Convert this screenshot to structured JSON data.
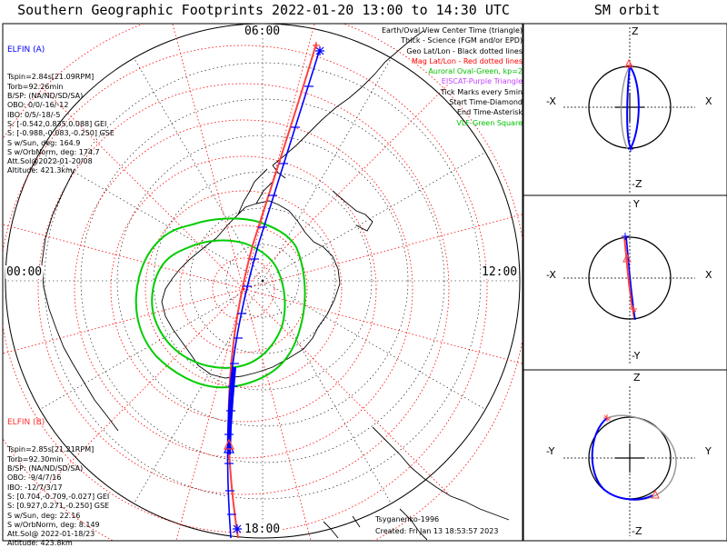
{
  "title": "Southern Geographic Footprints 2022-01-20 13:00 to 14:30 UTC",
  "sm_title": "SM orbit",
  "time_labels": {
    "top": "06:00",
    "left": "00:00",
    "right": "12:00",
    "bottom": "18:00"
  },
  "elfin_a": {
    "name": "ELFIN (A)",
    "color": "#0000ff",
    "lines": [
      "Tspin=2.84s[21.09RPM]",
      "Torb=92.26min",
      "B/SP: (NA/ND/SD/SA)",
      "OBO: 0/0/-16/-12",
      "IBO: 0/5/-18/-5",
      "S: [-0.542,0.835,0.088] GEI",
      "S: [-0.988,-0.083,-0.250] GSE",
      "S w/Sun, deg: 164.9",
      "S w/OrbNorm, deg: 174.7",
      "Att.Sol@2022-01-20/08",
      "Altitude: 421.3km"
    ]
  },
  "elfin_b": {
    "name": "ELFIN (B)",
    "color": "#ff3030",
    "lines": [
      "Tspin=2.85s[21.21RPM]",
      "Torb=92.30min",
      "B/SP: (NA/ND/SD/SA)",
      "OBO: -9/4/7/16",
      "IBO: -12/7/3/17",
      "S: [0.704,-0.709,-0.027] GEI",
      "S: [0.927,0.271,-0.250] GSE",
      "S w/Sun, deg: 22.16",
      "S w/OrbNorm, deg: 8.149",
      "Att.Sol@ 2022-01-18/23",
      "Altitude: 423.8km"
    ]
  },
  "legend": [
    {
      "text": "Earth/Oval View Center Time (triangle)",
      "color": "#000000"
    },
    {
      "text": "Thick - Science (FGM and/or EPD)",
      "color": "#000000"
    },
    {
      "text": "Geo Lat/Lon - Black dotted lines",
      "color": "#000000"
    },
    {
      "text": "Mag Lat/Lon - Red dotted lines",
      "color": "#ff0000"
    },
    {
      "text": "Auroral Oval-Green, kp=2",
      "color": "#00c000"
    },
    {
      "text": "EISCAT-Purple Triangle",
      "color": "#c040ff"
    },
    {
      "text": "Tick Marks every 5min",
      "color": "#000000"
    },
    {
      "text": "Start Time-Diamond",
      "color": "#000000"
    },
    {
      "text": "End Time-Asterisk",
      "color": "#000000"
    },
    {
      "text": "VLF-Green Square",
      "color": "#00c000"
    }
  ],
  "model": "Tsyganenko-1996",
  "created": "Created: Fri Jan 13 18:53:57 2023",
  "sm_panels": [
    {
      "top": "Z",
      "bottom": "-Z",
      "left": "-X",
      "right": "X"
    },
    {
      "top": "Y",
      "bottom": "-Y",
      "left": "-X",
      "right": "X"
    },
    {
      "top": "Z",
      "bottom": "-Z",
      "left": "-Y",
      "right": "Y"
    }
  ],
  "colors": {
    "trackA": "#0000ff",
    "trackB": "#ff3030",
    "oval": "#00cc00",
    "mag_grid": "#ff0000",
    "geo_grid": "#000000",
    "orbit_gray": "#999999"
  }
}
